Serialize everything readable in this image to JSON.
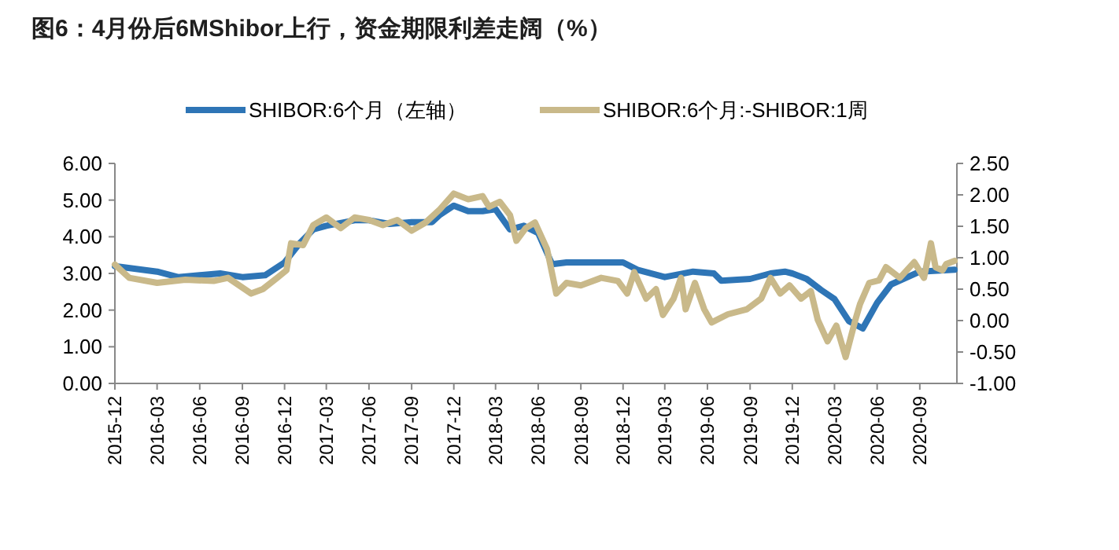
{
  "chart_data": {
    "type": "line",
    "title": "图6：4月份后6MShibor上行，资金期限利差走阔（%）",
    "legend": "top",
    "grid": false,
    "marker": "none",
    "line_style": "solid",
    "xlim": [
      "2015-12-01",
      "2020-11-20"
    ],
    "xticks": [
      {
        "value": "2015-12-01",
        "label": "2015-12"
      },
      {
        "value": "2016-03-01",
        "label": "2016-03"
      },
      {
        "value": "2016-06-01",
        "label": "2016-06"
      },
      {
        "value": "2016-09-01",
        "label": "2016-09"
      },
      {
        "value": "2016-12-01",
        "label": "2016-12"
      },
      {
        "value": "2017-03-01",
        "label": "2017-03"
      },
      {
        "value": "2017-06-01",
        "label": "2017-06"
      },
      {
        "value": "2017-09-01",
        "label": "2017-09"
      },
      {
        "value": "2017-12-01",
        "label": "2017-12"
      },
      {
        "value": "2018-03-01",
        "label": "2018-03"
      },
      {
        "value": "2018-06-01",
        "label": "2018-06"
      },
      {
        "value": "2018-09-01",
        "label": "2018-09"
      },
      {
        "value": "2018-12-01",
        "label": "2018-12"
      },
      {
        "value": "2019-03-01",
        "label": "2019-03"
      },
      {
        "value": "2019-06-01",
        "label": "2019-06"
      },
      {
        "value": "2019-09-01",
        "label": "2019-09"
      },
      {
        "value": "2019-12-01",
        "label": "2019-12"
      },
      {
        "value": "2020-03-01",
        "label": "2020-03"
      },
      {
        "value": "2020-06-01",
        "label": "2020-06"
      },
      {
        "value": "2020-09-01",
        "label": "2020-09"
      }
    ],
    "ylim": [
      0,
      6
    ],
    "yticks": [
      {
        "value": 0,
        "label": "0.00"
      },
      {
        "value": 1,
        "label": "1.00"
      },
      {
        "value": 2,
        "label": "2.00"
      },
      {
        "value": 3,
        "label": "3.00"
      },
      {
        "value": 4,
        "label": "4.00"
      },
      {
        "value": 5,
        "label": "5.00"
      },
      {
        "value": 6,
        "label": "6.00"
      }
    ],
    "y2lim": [
      -1,
      2.5
    ],
    "y2ticks": [
      {
        "value": -1,
        "label": "-1.00"
      },
      {
        "value": -0.5,
        "label": "-0.50"
      },
      {
        "value": 0,
        "label": "0.00"
      },
      {
        "value": 0.5,
        "label": "0.50"
      },
      {
        "value": 1,
        "label": "1.00"
      },
      {
        "value": 1.5,
        "label": "1.50"
      },
      {
        "value": 2,
        "label": "2.00"
      },
      {
        "value": 2.5,
        "label": "2.50"
      }
    ],
    "series": [
      {
        "name": "SHIBOR:6个月（左轴）",
        "color": "#2e75b6",
        "x": [
          "2015-12-01",
          "2016-03-01",
          "2016-04-15",
          "2016-06-01",
          "2016-07-15",
          "2016-09-01",
          "2016-10-20",
          "2016-12-01",
          "2017-01-01",
          "2017-02-01",
          "2017-03-01",
          "2017-05-01",
          "2017-06-01",
          "2017-07-15",
          "2017-09-01",
          "2017-10-15",
          "2017-11-01",
          "2017-12-01",
          "2018-01-01",
          "2018-02-01",
          "2018-03-01",
          "2018-04-01",
          "2018-05-01",
          "2018-06-01",
          "2018-07-01",
          "2018-08-01",
          "2018-12-01",
          "2019-01-01",
          "2019-03-01",
          "2019-05-01",
          "2019-06-15",
          "2019-07-01",
          "2019-09-01",
          "2019-10-15",
          "2019-11-15",
          "2019-12-01",
          "2020-01-01",
          "2020-02-01",
          "2020-03-01",
          "2020-04-01",
          "2020-05-01",
          "2020-06-01",
          "2020-07-01",
          "2020-09-01",
          "2020-11-15"
        ],
        "values": [
          3.2,
          3.05,
          2.9,
          2.95,
          3.0,
          2.9,
          2.95,
          3.3,
          3.8,
          4.2,
          4.3,
          4.45,
          4.45,
          4.35,
          4.4,
          4.4,
          4.6,
          4.85,
          4.7,
          4.7,
          4.75,
          4.2,
          4.3,
          4.1,
          3.25,
          3.3,
          3.3,
          3.1,
          2.9,
          3.05,
          3.0,
          2.8,
          2.85,
          3.0,
          3.05,
          3.0,
          2.85,
          2.55,
          2.3,
          1.7,
          1.5,
          2.2,
          2.7,
          3.05,
          3.1
        ]
      },
      {
        "name": "SHIBOR:6个月:-SHIBOR:1周",
        "color": "#c9b98a",
        "axis": "y2",
        "x": [
          "2015-12-01",
          "2016-01-01",
          "2016-03-01",
          "2016-05-01",
          "2016-07-01",
          "2016-08-01",
          "2016-09-20",
          "2016-10-15",
          "2016-11-15",
          "2016-12-05",
          "2016-12-15",
          "2017-01-10",
          "2017-02-01",
          "2017-03-01",
          "2017-04-01",
          "2017-05-01",
          "2017-06-01",
          "2017-07-01",
          "2017-08-01",
          "2017-09-01",
          "2017-10-01",
          "2017-11-01",
          "2017-12-01",
          "2018-01-01",
          "2018-02-01",
          "2018-02-15",
          "2018-03-10",
          "2018-04-01",
          "2018-04-15",
          "2018-05-05",
          "2018-05-25",
          "2018-06-20",
          "2018-07-10",
          "2018-08-01",
          "2018-09-01",
          "2018-10-15",
          "2018-11-20",
          "2018-12-10",
          "2018-12-25",
          "2019-01-20",
          "2019-02-10",
          "2019-02-25",
          "2019-03-20",
          "2019-04-05",
          "2019-04-15",
          "2019-05-05",
          "2019-05-25",
          "2019-06-10",
          "2019-07-15",
          "2019-08-25",
          "2019-09-25",
          "2019-10-15",
          "2019-11-05",
          "2019-11-25",
          "2019-12-20",
          "2020-01-10",
          "2020-01-25",
          "2020-02-15",
          "2020-03-05",
          "2020-03-25",
          "2020-04-15",
          "2020-04-25",
          "2020-05-15",
          "2020-06-05",
          "2020-06-20",
          "2020-07-20",
          "2020-08-20",
          "2020-09-10",
          "2020-09-25",
          "2020-10-05",
          "2020-10-20",
          "2020-10-28",
          "2020-11-15"
        ],
        "values": [
          0.89,
          0.68,
          0.6,
          0.65,
          0.63,
          0.68,
          0.43,
          0.5,
          0.68,
          0.8,
          1.23,
          1.2,
          1.52,
          1.64,
          1.47,
          1.64,
          1.6,
          1.52,
          1.6,
          1.43,
          1.56,
          1.77,
          2.02,
          1.93,
          1.98,
          1.81,
          1.89,
          1.68,
          1.27,
          1.47,
          1.56,
          1.14,
          0.43,
          0.6,
          0.56,
          0.68,
          0.63,
          0.43,
          0.77,
          0.35,
          0.5,
          0.09,
          0.35,
          0.68,
          0.18,
          0.6,
          0.18,
          -0.03,
          0.1,
          0.18,
          0.35,
          0.68,
          0.43,
          0.56,
          0.35,
          0.47,
          0.01,
          -0.33,
          -0.08,
          -0.58,
          0.01,
          0.26,
          0.6,
          0.64,
          0.85,
          0.68,
          0.93,
          0.68,
          1.23,
          0.85,
          0.8,
          0.9,
          0.95
        ]
      }
    ]
  }
}
